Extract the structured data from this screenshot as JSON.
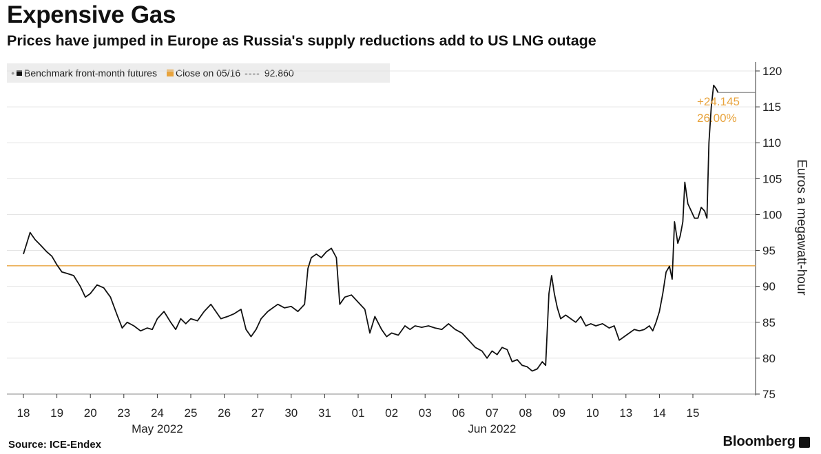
{
  "header": {
    "title": "Expensive Gas",
    "subtitle": "Prices have jumped in Europe as Russia's supply reductions add to US LNG outage"
  },
  "legend": {
    "series_label": "Benchmark front-month futures",
    "close_label": "Close on 05/16",
    "close_value": "92.860"
  },
  "footer": {
    "source": "Source: ICE-Endex",
    "brand": "Bloomberg"
  },
  "colors": {
    "line": "#111111",
    "reference": "#e8a33c",
    "grid": "#e4e4e4"
  },
  "chart_data": {
    "type": "line",
    "title": "Expensive Gas",
    "subtitle": "Prices have jumped in Europe as Russia's supply reductions add to US LNG outage",
    "ylabel": "Euros a megawatt-hour",
    "ylim": [
      75,
      120
    ],
    "yticks": [
      75,
      80,
      85,
      90,
      95,
      100,
      105,
      110,
      115,
      120
    ],
    "y_axis_side": "right",
    "grid": true,
    "legend_position": "top-left",
    "xticks": [
      "18",
      "19",
      "20",
      "23",
      "24",
      "25",
      "26",
      "27",
      "30",
      "31",
      "01",
      "02",
      "03",
      "06",
      "07",
      "08",
      "09",
      "10",
      "13",
      "14",
      "15"
    ],
    "month_labels": [
      {
        "label": "May 2022",
        "under_tick": "24"
      },
      {
        "label": "Jun 2022",
        "under_tick": "07"
      }
    ],
    "reference_line": {
      "label": "Close on 05/16",
      "value": 92.86
    },
    "annotation": {
      "change": "+24.145",
      "percent": "26.00%"
    },
    "series": [
      {
        "name": "Benchmark front-month futures",
        "points": [
          [
            0.0,
            94.5
          ],
          [
            0.1,
            96.0
          ],
          [
            0.2,
            97.5
          ],
          [
            0.35,
            96.5
          ],
          [
            0.5,
            95.8
          ],
          [
            0.7,
            94.8
          ],
          [
            0.85,
            94.2
          ],
          [
            1.0,
            93.0
          ],
          [
            1.15,
            92.0
          ],
          [
            1.3,
            91.8
          ],
          [
            1.5,
            91.5
          ],
          [
            1.7,
            90.0
          ],
          [
            1.85,
            88.5
          ],
          [
            2.0,
            89.0
          ],
          [
            2.2,
            90.2
          ],
          [
            2.4,
            89.8
          ],
          [
            2.6,
            88.5
          ],
          [
            2.8,
            86.0
          ],
          [
            2.95,
            84.2
          ],
          [
            3.1,
            85.0
          ],
          [
            3.3,
            84.5
          ],
          [
            3.5,
            83.8
          ],
          [
            3.7,
            84.2
          ],
          [
            3.85,
            84.0
          ],
          [
            4.0,
            85.5
          ],
          [
            4.2,
            86.5
          ],
          [
            4.4,
            85.0
          ],
          [
            4.55,
            84.0
          ],
          [
            4.7,
            85.5
          ],
          [
            4.85,
            84.8
          ],
          [
            5.0,
            85.5
          ],
          [
            5.2,
            85.2
          ],
          [
            5.4,
            86.5
          ],
          [
            5.6,
            87.5
          ],
          [
            5.75,
            86.5
          ],
          [
            5.9,
            85.5
          ],
          [
            6.1,
            85.8
          ],
          [
            6.3,
            86.2
          ],
          [
            6.5,
            86.8
          ],
          [
            6.65,
            84.0
          ],
          [
            6.8,
            83.0
          ],
          [
            6.95,
            84.0
          ],
          [
            7.1,
            85.5
          ],
          [
            7.3,
            86.5
          ],
          [
            7.45,
            87.0
          ],
          [
            7.6,
            87.5
          ],
          [
            7.8,
            87.0
          ],
          [
            8.0,
            87.2
          ],
          [
            8.2,
            86.5
          ],
          [
            8.4,
            87.5
          ],
          [
            8.5,
            92.5
          ],
          [
            8.6,
            94.0
          ],
          [
            8.75,
            94.5
          ],
          [
            8.9,
            94.0
          ],
          [
            9.05,
            94.8
          ],
          [
            9.2,
            95.3
          ],
          [
            9.35,
            94.0
          ],
          [
            9.45,
            87.5
          ],
          [
            9.6,
            88.5
          ],
          [
            9.8,
            88.8
          ],
          [
            10.0,
            87.8
          ],
          [
            10.2,
            86.8
          ],
          [
            10.35,
            83.5
          ],
          [
            10.5,
            85.8
          ],
          [
            10.7,
            84.0
          ],
          [
            10.85,
            83.0
          ],
          [
            11.0,
            83.5
          ],
          [
            11.2,
            83.2
          ],
          [
            11.4,
            84.5
          ],
          [
            11.55,
            84.0
          ],
          [
            11.7,
            84.5
          ],
          [
            11.9,
            84.3
          ],
          [
            12.1,
            84.5
          ],
          [
            12.3,
            84.2
          ],
          [
            12.5,
            84.0
          ],
          [
            12.7,
            84.8
          ],
          [
            12.9,
            84.0
          ],
          [
            13.1,
            83.5
          ],
          [
            13.3,
            82.5
          ],
          [
            13.5,
            81.5
          ],
          [
            13.7,
            81.0
          ],
          [
            13.85,
            80.0
          ],
          [
            14.0,
            81.0
          ],
          [
            14.15,
            80.5
          ],
          [
            14.3,
            81.5
          ],
          [
            14.45,
            81.2
          ],
          [
            14.6,
            79.5
          ],
          [
            14.75,
            79.8
          ],
          [
            14.9,
            79.0
          ],
          [
            15.05,
            78.8
          ],
          [
            15.2,
            78.2
          ],
          [
            15.35,
            78.5
          ],
          [
            15.5,
            79.5
          ],
          [
            15.6,
            79.0
          ],
          [
            15.7,
            89.0
          ],
          [
            15.78,
            91.5
          ],
          [
            15.86,
            89.0
          ],
          [
            15.95,
            87.0
          ],
          [
            16.05,
            85.5
          ],
          [
            16.2,
            86.0
          ],
          [
            16.35,
            85.5
          ],
          [
            16.5,
            85.0
          ],
          [
            16.65,
            85.8
          ],
          [
            16.8,
            84.5
          ],
          [
            16.95,
            84.8
          ],
          [
            17.1,
            84.5
          ],
          [
            17.3,
            84.8
          ],
          [
            17.5,
            84.2
          ],
          [
            17.65,
            84.5
          ],
          [
            17.8,
            82.5
          ],
          [
            17.95,
            83.0
          ],
          [
            18.1,
            83.5
          ],
          [
            18.25,
            84.0
          ],
          [
            18.4,
            83.8
          ],
          [
            18.55,
            84.0
          ],
          [
            18.7,
            84.5
          ],
          [
            18.8,
            83.8
          ],
          [
            18.9,
            85.0
          ],
          [
            19.0,
            86.5
          ],
          [
            19.1,
            89.0
          ],
          [
            19.2,
            92.0
          ],
          [
            19.3,
            92.8
          ],
          [
            19.38,
            91.0
          ],
          [
            19.45,
            99.0
          ],
          [
            19.55,
            96.0
          ],
          [
            19.62,
            97.0
          ],
          [
            19.7,
            99.0
          ],
          [
            19.76,
            104.5
          ],
          [
            19.85,
            101.5
          ],
          [
            19.95,
            100.5
          ],
          [
            20.05,
            99.5
          ],
          [
            20.15,
            99.5
          ],
          [
            20.25,
            101.0
          ],
          [
            20.35,
            100.5
          ],
          [
            20.42,
            99.5
          ],
          [
            20.48,
            110.0
          ],
          [
            20.55,
            115.0
          ],
          [
            20.62,
            118.0
          ],
          [
            20.7,
            117.5
          ],
          [
            20.75,
            117.0
          ]
        ]
      }
    ]
  }
}
